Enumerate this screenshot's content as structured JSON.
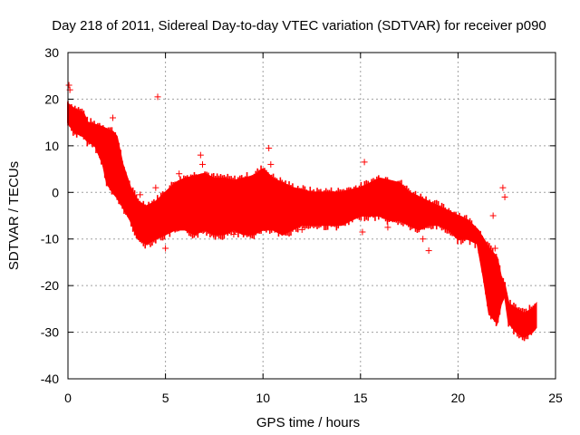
{
  "chart_data": {
    "type": "scatter",
    "title": "Day 218 of 2011, Sidereal Day-to-day VTEC variation (SDTVAR) for receiver p090",
    "xlabel": "GPS time / hours",
    "ylabel": "SDTVAR / TECUs",
    "xlim": [
      0,
      25
    ],
    "ylim": [
      -40,
      30
    ],
    "xticks": [
      0,
      5,
      10,
      15,
      20,
      25
    ],
    "yticks": [
      -40,
      -30,
      -20,
      -10,
      0,
      10,
      20,
      30
    ],
    "grid": true,
    "marker": "+",
    "series_color": "#ff0000",
    "band": {
      "x": [
        0.0,
        0.3,
        0.8,
        1.0,
        1.4,
        1.8,
        2.0,
        2.3,
        2.5,
        2.8,
        3.2,
        3.6,
        4.0,
        4.5,
        5.0,
        5.5,
        6.0,
        6.5,
        7.0,
        7.5,
        8.0,
        8.5,
        9.0,
        9.5,
        10.0,
        10.5,
        11.0,
        11.5,
        12.0,
        12.5,
        13.0,
        13.5,
        14.0,
        14.5,
        15.0,
        15.5,
        16.0,
        16.5,
        17.0,
        17.5,
        18.0,
        18.5,
        19.0,
        19.5,
        20.0,
        20.5,
        21.0,
        21.3,
        21.6,
        22.0,
        22.2,
        22.4,
        22.6,
        23.0,
        23.4,
        23.8,
        24.0
      ],
      "upper": [
        19,
        18,
        17,
        15,
        14.5,
        14,
        13.5,
        13,
        12,
        6,
        1,
        -2,
        -3,
        -2,
        0,
        2,
        3,
        3.5,
        4,
        3,
        3,
        2.5,
        3,
        3.5,
        5,
        3,
        2,
        1,
        0.5,
        0,
        0,
        0,
        0,
        0.5,
        1,
        2,
        3,
        2.5,
        2,
        0,
        -1,
        -2,
        -3,
        -4,
        -5,
        -6,
        -8,
        -10,
        -12,
        -14,
        -18,
        -20,
        -24,
        -25,
        -26,
        -25,
        -24
      ],
      "lower": [
        15,
        13,
        12,
        11,
        10,
        6,
        2,
        0,
        -1,
        -3,
        -6,
        -10,
        -11,
        -10,
        -9,
        -8,
        -8,
        -9,
        -8,
        -9,
        -9,
        -8,
        -9,
        -9,
        -8,
        -8,
        -9,
        -8,
        -7,
        -7,
        -7,
        -7,
        -7,
        -6,
        -5,
        -5,
        -5,
        -6,
        -6,
        -7,
        -8,
        -7,
        -7,
        -8,
        -10,
        -10,
        -11,
        -18,
        -26,
        -28,
        -24,
        -22,
        -28,
        -30,
        -31,
        -30,
        -29
      ]
    },
    "scatter_points": [
      {
        "x": 0.05,
        "y": 23
      },
      {
        "x": 0.1,
        "y": 22
      },
      {
        "x": 4.6,
        "y": 20.5
      },
      {
        "x": 2.3,
        "y": 16
      },
      {
        "x": 1.7,
        "y": 9.5
      },
      {
        "x": 3.7,
        "y": -0.5
      },
      {
        "x": 4.5,
        "y": 1
      },
      {
        "x": 5.0,
        "y": -12
      },
      {
        "x": 5.7,
        "y": 4
      },
      {
        "x": 6.8,
        "y": 8
      },
      {
        "x": 6.9,
        "y": 6
      },
      {
        "x": 7.0,
        "y": -8
      },
      {
        "x": 8.5,
        "y": -9
      },
      {
        "x": 10.3,
        "y": 9.5
      },
      {
        "x": 10.4,
        "y": 6
      },
      {
        "x": 10.6,
        "y": -8
      },
      {
        "x": 12.0,
        "y": -8
      },
      {
        "x": 15.2,
        "y": 6.5
      },
      {
        "x": 15.1,
        "y": -8.5
      },
      {
        "x": 16.4,
        "y": -7.5
      },
      {
        "x": 18.5,
        "y": -12.5
      },
      {
        "x": 18.2,
        "y": -10
      },
      {
        "x": 22.3,
        "y": 1
      },
      {
        "x": 22.4,
        "y": -1
      },
      {
        "x": 21.8,
        "y": -5
      },
      {
        "x": 21.9,
        "y": -12
      },
      {
        "x": 23.3,
        "y": -31
      }
    ]
  }
}
